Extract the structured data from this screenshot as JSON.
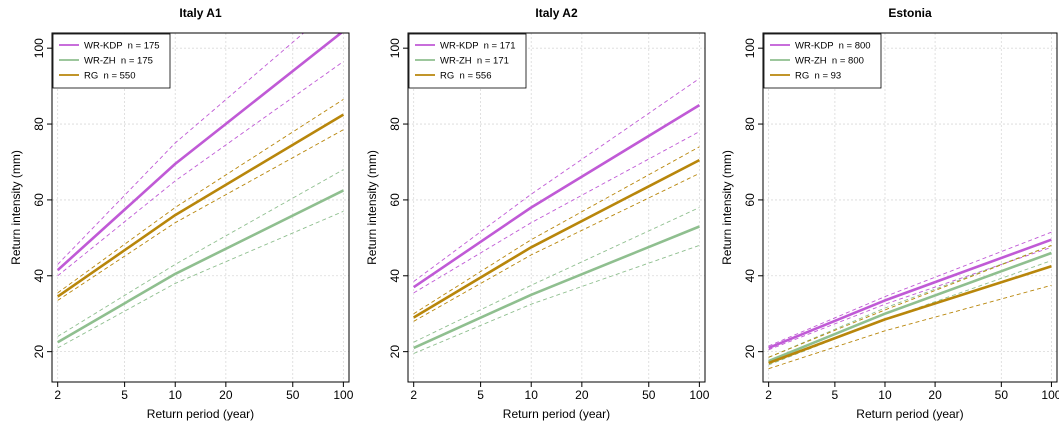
{
  "chart_data": [
    {
      "type": "line",
      "title": "Italy A1",
      "xlabel": "Return period (year)",
      "ylabel": "Return intensity (mm)",
      "x_scale": "log",
      "x_ticks": [
        2,
        5,
        10,
        20,
        50,
        100
      ],
      "y_ticks": [
        20,
        40,
        60,
        80,
        100
      ],
      "xlim": [
        1.85,
        108
      ],
      "ylim": [
        12,
        104
      ],
      "grid": true,
      "legend_position": "top-left",
      "series": [
        {
          "name": "WR-KDP  n = 175",
          "color": "#c05ad6",
          "x": [
            2,
            10,
            100
          ],
          "values": [
            41.5,
            69.5,
            104.5
          ],
          "lower": [
            40,
            65,
            96.5
          ],
          "upper": [
            43,
            75,
            113
          ]
        },
        {
          "name": "WR-ZH  n = 175",
          "color": "#8fbf8f",
          "x": [
            2,
            10,
            100
          ],
          "values": [
            22.5,
            40.5,
            62.5
          ],
          "lower": [
            21,
            38,
            57
          ],
          "upper": [
            24,
            43,
            68
          ]
        },
        {
          "name": "RG  n = 550",
          "color": "#b8860b",
          "x": [
            2,
            10,
            100
          ],
          "values": [
            34.5,
            56,
            82.5
          ],
          "lower": [
            33.5,
            54,
            78.5
          ],
          "upper": [
            35.5,
            58,
            86.5
          ]
        }
      ]
    },
    {
      "type": "line",
      "title": "Italy A2",
      "xlabel": "Return period (year)",
      "ylabel": "Return intensity (mm)",
      "x_scale": "log",
      "x_ticks": [
        2,
        5,
        10,
        20,
        50,
        100
      ],
      "y_ticks": [
        20,
        40,
        60,
        80,
        100
      ],
      "xlim": [
        1.85,
        108
      ],
      "ylim": [
        12,
        104
      ],
      "grid": true,
      "legend_position": "top-left",
      "series": [
        {
          "name": "WR-KDP  n = 171",
          "color": "#c05ad6",
          "x": [
            2,
            10,
            100
          ],
          "values": [
            37,
            58,
            85
          ],
          "lower": [
            35.5,
            54,
            78
          ],
          "upper": [
            38.5,
            61.5,
            92
          ]
        },
        {
          "name": "WR-ZH  n = 171",
          "color": "#8fbf8f",
          "x": [
            2,
            10,
            100
          ],
          "values": [
            21,
            35,
            53
          ],
          "lower": [
            19.5,
            32.5,
            48
          ],
          "upper": [
            22.5,
            37.5,
            58
          ]
        },
        {
          "name": "RG  n = 556",
          "color": "#b8860b",
          "x": [
            2,
            10,
            100
          ],
          "values": [
            29,
            47.5,
            70.5
          ],
          "lower": [
            28,
            45.5,
            67
          ],
          "upper": [
            30,
            49.5,
            74
          ]
        }
      ]
    },
    {
      "type": "line",
      "title": "Estonia",
      "xlabel": "Return period (year)",
      "ylabel": "Return intensity (mm)",
      "x_scale": "log",
      "x_ticks": [
        2,
        5,
        10,
        20,
        50,
        100
      ],
      "y_ticks": [
        20,
        40,
        60,
        80,
        100
      ],
      "xlim": [
        1.85,
        108
      ],
      "ylim": [
        12,
        104
      ],
      "grid": true,
      "legend_position": "top-left",
      "series": [
        {
          "name": "WR-KDP  n = 800",
          "color": "#c05ad6",
          "x": [
            2,
            10,
            100
          ],
          "values": [
            21,
            33.5,
            49.5
          ],
          "lower": [
            20.5,
            32.5,
            47.5
          ],
          "upper": [
            21.5,
            34.5,
            51.5
          ]
        },
        {
          "name": "WR-ZH  n = 800",
          "color": "#8fbf8f",
          "x": [
            2,
            10,
            100
          ],
          "values": [
            17.5,
            30,
            46
          ],
          "lower": [
            16.5,
            28.5,
            44
          ],
          "upper": [
            18.5,
            31.5,
            48
          ]
        },
        {
          "name": "RG  n = 93",
          "color": "#b8860b",
          "x": [
            2,
            10,
            100
          ],
          "values": [
            17,
            28.5,
            42.5
          ],
          "lower": [
            15.5,
            25.5,
            37.5
          ],
          "upper": [
            18.5,
            31,
            48
          ]
        }
      ]
    }
  ]
}
